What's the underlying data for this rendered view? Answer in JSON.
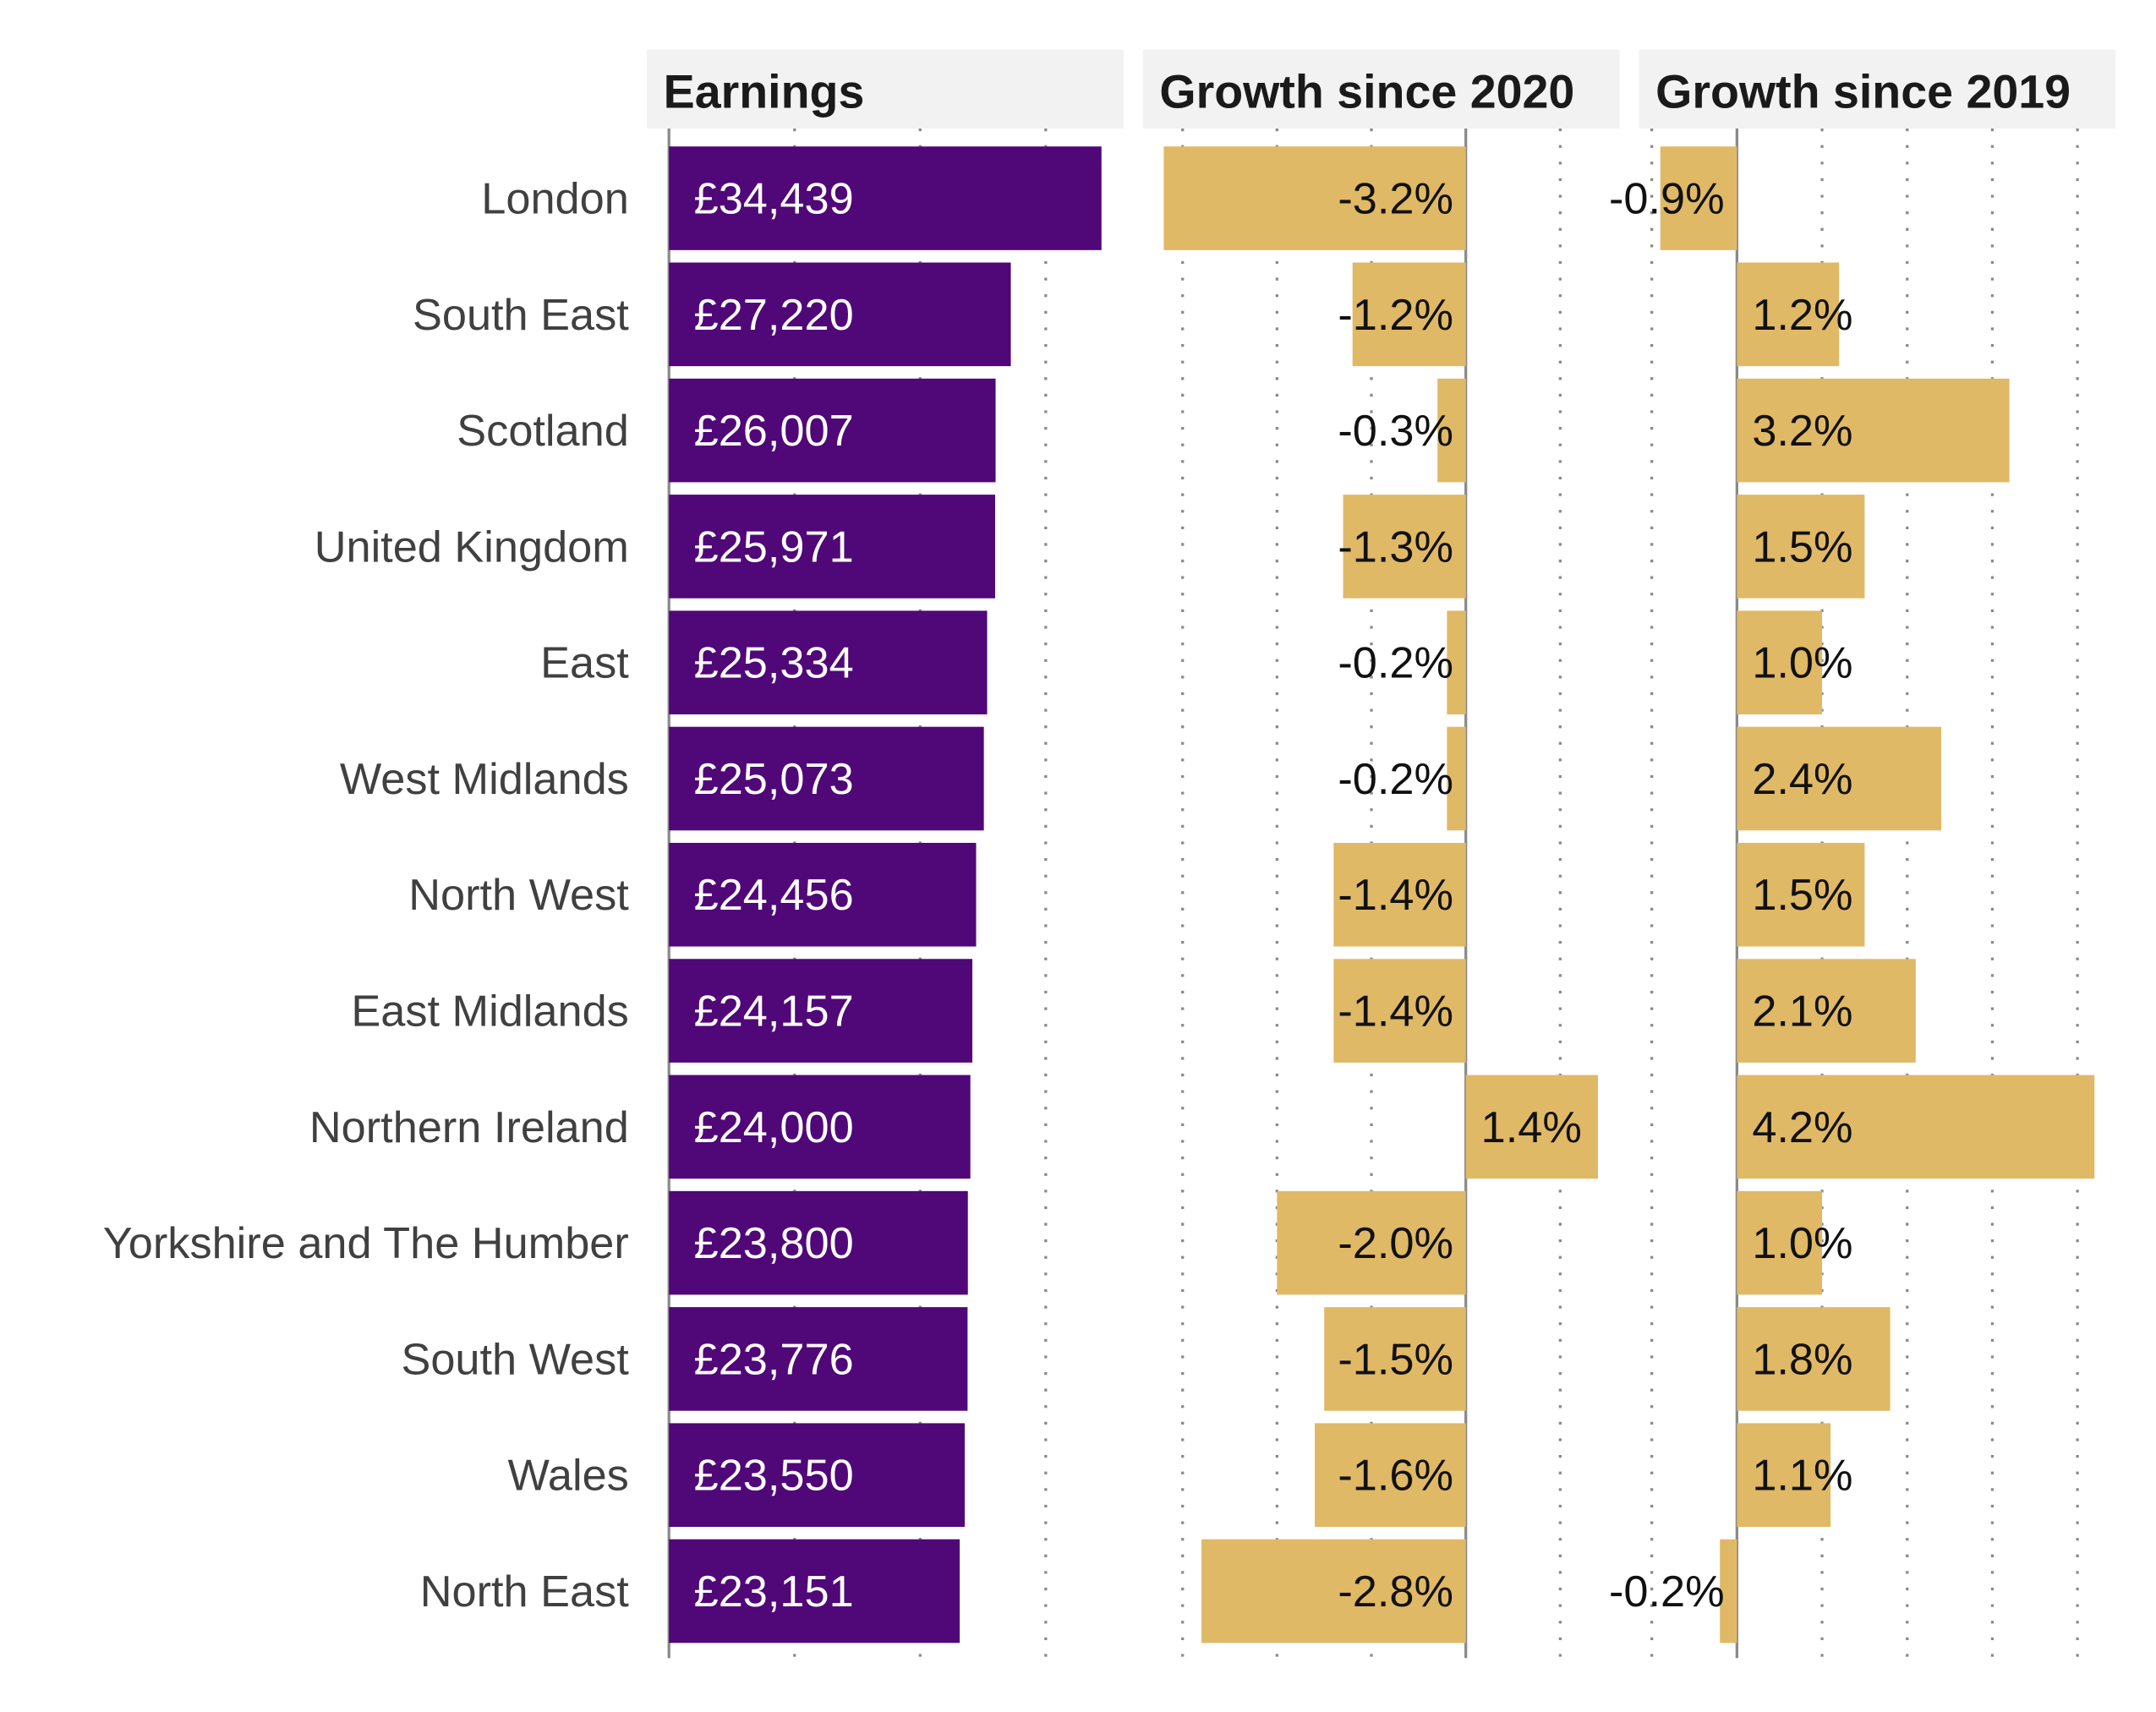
{
  "chart_data": [
    {
      "type": "bar",
      "orientation": "horizontal",
      "title": "Earnings",
      "categories": [
        "London",
        "South East",
        "Scotland",
        "United Kingdom",
        "East",
        "West Midlands",
        "North West",
        "East Midlands",
        "Northern Ireland",
        "Yorkshire and The Humber",
        "South West",
        "Wales",
        "North East"
      ],
      "values": [
        34439,
        27220,
        26007,
        25971,
        25334,
        25073,
        24456,
        24157,
        24000,
        23800,
        23776,
        23550,
        23151
      ],
      "labels": [
        "£34,439",
        "£27,220",
        "£26,007",
        "£25,971",
        "£25,334",
        "£25,073",
        "£24,456",
        "£24,157",
        "£24,000",
        "£23,800",
        "£23,776",
        "£23,550",
        "£23,151"
      ],
      "xlim": [
        -1760,
        36200
      ],
      "gridlines": [
        10000,
        20000,
        30000
      ],
      "grid": true,
      "color": "#500778"
    },
    {
      "type": "bar",
      "orientation": "horizontal",
      "title": "Growth since 2020",
      "values": [
        -3.2,
        -1.2,
        -0.3,
        -1.3,
        -0.2,
        -0.2,
        -1.4,
        -1.4,
        1.4,
        -2.0,
        -1.5,
        -1.6,
        -2.8
      ],
      "labels": [
        "-3.2%",
        "-1.2%",
        "-0.3%",
        "-1.3%",
        "-0.2%",
        "-0.2%",
        "-1.4%",
        "-1.4%",
        "1.4%",
        "-2.0%",
        "-1.5%",
        "-1.6%",
        "-2.8%"
      ],
      "xlim": [
        -3.42,
        1.63
      ],
      "gridlines": [
        -3,
        -2,
        -1,
        1
      ],
      "grid": true,
      "color": "#e0b966"
    },
    {
      "type": "bar",
      "orientation": "horizontal",
      "title": "Growth since 2019",
      "values": [
        -0.9,
        1.2,
        3.2,
        1.5,
        1.0,
        2.4,
        1.5,
        2.1,
        4.2,
        1.0,
        1.8,
        1.1,
        -0.2
      ],
      "labels": [
        "-0.9%",
        "1.2%",
        "3.2%",
        "1.5%",
        "1.0%",
        "2.4%",
        "1.5%",
        "2.1%",
        "4.2%",
        "1.0%",
        "1.8%",
        "1.1%",
        "-0.2%"
      ],
      "xlim": [
        -1.15,
        4.45
      ],
      "gridlines": [
        -1,
        1,
        2,
        3,
        4
      ],
      "grid": true,
      "color": "#e0b966"
    }
  ]
}
